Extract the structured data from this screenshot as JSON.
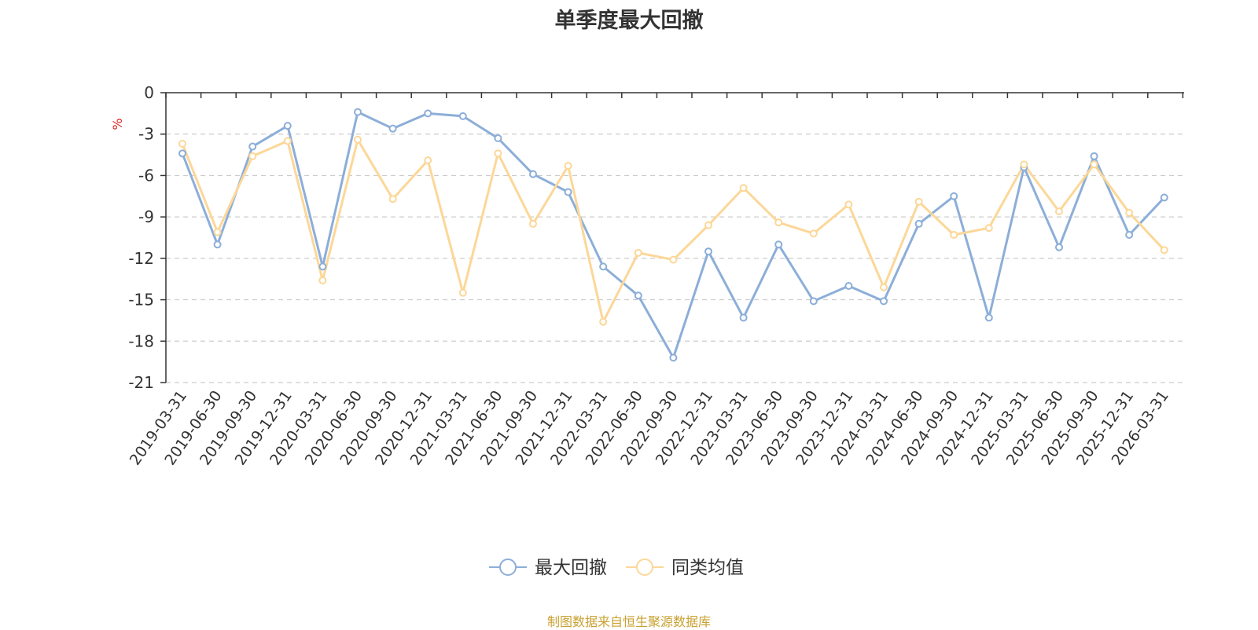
{
  "chart_data": {
    "type": "line",
    "title": "单季度最大回撤",
    "ylabel": "%",
    "ylim": [
      -21,
      0
    ],
    "yticks": [
      0,
      -3,
      -6,
      -9,
      -12,
      -15,
      -18,
      -21
    ],
    "grid": true,
    "legend_position": "bottom",
    "categories": [
      "2019-03-31",
      "2019-06-30",
      "2019-09-30",
      "2019-12-31",
      "2020-03-31",
      "2020-06-30",
      "2020-09-30",
      "2020-12-31",
      "2021-03-31",
      "2021-06-30",
      "2021-09-30",
      "2021-12-31",
      "2022-03-31",
      "2022-06-30",
      "2022-09-30",
      "2022-12-31",
      "2023-03-31",
      "2023-06-30",
      "2023-09-30",
      "2023-12-31",
      "2024-03-31",
      "2024-06-30",
      "2024-09-30",
      "2024-12-31",
      "2025-03-31",
      "2025-06-30",
      "2025-09-30",
      "2025-12-31",
      "2026-03-31"
    ],
    "series": [
      {
        "name": "最大回撤",
        "color": "#8caed8",
        "values": [
          -4.4,
          -11.0,
          -3.9,
          -2.4,
          -12.6,
          -1.4,
          -2.6,
          -1.5,
          -1.7,
          -3.3,
          -5.9,
          -7.2,
          -12.6,
          -14.7,
          -19.2,
          -11.5,
          -16.3,
          -11.0,
          -15.1,
          -14.0,
          -15.1,
          -9.5,
          -7.5,
          -16.3,
          -5.4,
          -11.2,
          -4.6,
          -10.3,
          -7.6
        ]
      },
      {
        "name": "同类均值",
        "color": "#fcd798",
        "values": [
          -3.7,
          -10.1,
          -4.6,
          -3.5,
          -13.6,
          -3.4,
          -7.7,
          -4.9,
          -14.5,
          -4.4,
          -9.5,
          -5.3,
          -16.6,
          -11.6,
          -12.1,
          -9.6,
          -6.9,
          -9.4,
          -10.2,
          -8.1,
          -14.1,
          -7.9,
          -10.3,
          -9.8,
          -5.2,
          -8.6,
          -5.2,
          -8.7,
          -11.4
        ]
      }
    ]
  },
  "source_note": "制图数据来自恒生聚源数据库"
}
